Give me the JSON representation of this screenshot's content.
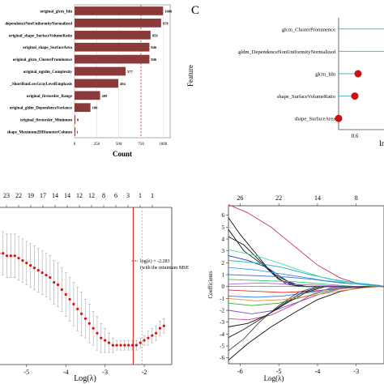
{
  "panel_labels": {
    "c": "C"
  },
  "chart_data": [
    {
      "type": "bar",
      "orientation": "horizontal",
      "categories": [
        "original_glcm_Idn",
        "dependenceNonUniformityNormalized",
        "original_shape_SurfaceVolumeRatio",
        "original_shape_SurfaceArea",
        "original_glcm_ClusterProminence",
        "original_ngtdm_Complexity",
        "_ShortRunLowGrayLevelEmphasis",
        "original_firstorder_Range",
        "original_gldm_DependenceVariance",
        "original_firstorder_Minimum",
        "shape_Maximum2DDiameterColumn"
      ],
      "values": [
        1000,
        978,
        859,
        846,
        846,
        577,
        494,
        289,
        180,
        8,
        1
      ],
      "xlabel": "Count",
      "xticks": [
        0,
        250,
        500,
        750,
        1000
      ],
      "xlim": [
        0,
        1080
      ],
      "reference_line_x": 750,
      "bar_color": "#8b3a3a",
      "grid": true
    },
    {
      "type": "scatter",
      "orientation": "horizontal-lollipop",
      "categories": [
        "glcm_ClusterProminence",
        "gldm_DependenceNonUniformityNormalized",
        "glcm_Idn",
        "shape_SurfaceVolumeRatio",
        "shape_SurfaceArea"
      ],
      "values": [
        null,
        null,
        0.61,
        0.6,
        0.55
      ],
      "ylabel": "Feature",
      "xlabel": "Imp",
      "xticks": [
        0.6
      ],
      "xlim": [
        0.45,
        0.7
      ],
      "point_color": "#cc1111",
      "line_color": "#4ab3d6"
    },
    {
      "type": "line",
      "xlabel": "Log(λ)",
      "xticks": [
        -5,
        -4,
        -3,
        -2
      ],
      "xlim": [
        -5.8,
        -1.3
      ],
      "top_ticks": [
        "23",
        "22",
        "19",
        "17",
        "14",
        "14",
        "12",
        "12",
        "8",
        "6",
        "3",
        "1",
        "1"
      ],
      "series": [
        {
          "x": [
            -5.8,
            -5.7,
            -5.6,
            -5.5,
            -5.4,
            -5.3,
            -5.2,
            -5.1,
            -5.0,
            -4.9,
            -4.8,
            -4.7,
            -4.6,
            -4.5,
            -4.4,
            -4.3,
            -4.2,
            -4.1,
            -4.0,
            -3.9,
            -3.8,
            -3.7,
            -3.6,
            -3.5,
            -3.4,
            -3.3,
            -3.2,
            -3.1,
            -3.0,
            -2.9,
            -2.8,
            -2.7,
            -2.6,
            -2.5,
            -2.4,
            -2.3,
            -2.2,
            -2.1,
            -2.0,
            -1.9,
            -1.8,
            -1.7,
            -1.6,
            -1.5
          ],
          "y": [
            0.81,
            0.81,
            0.81,
            0.8,
            0.8,
            0.8,
            0.79,
            0.78,
            0.77,
            0.76,
            0.75,
            0.74,
            0.73,
            0.72,
            0.71,
            0.69,
            0.68,
            0.66,
            0.64,
            0.62,
            0.6,
            0.58,
            0.56,
            0.54,
            0.52,
            0.5,
            0.48,
            0.46,
            0.45,
            0.44,
            0.43,
            0.43,
            0.43,
            0.43,
            0.43,
            0.43,
            0.43,
            0.44,
            0.45,
            0.46,
            0.47,
            0.48,
            0.5,
            0.51
          ],
          "err": [
            0.09,
            0.09,
            0.09,
            0.09,
            0.09,
            0.09,
            0.09,
            0.09,
            0.09,
            0.09,
            0.09,
            0.09,
            0.09,
            0.09,
            0.09,
            0.09,
            0.09,
            0.09,
            0.09,
            0.09,
            0.09,
            0.09,
            0.09,
            0.08,
            0.08,
            0.07,
            0.07,
            0.06,
            0.05,
            0.04,
            0.03,
            0.02,
            0.02,
            0.02,
            0.02,
            0.02,
            0.02,
            0.02,
            0.02,
            0.03,
            0.03,
            0.03,
            0.03,
            0.03
          ]
        }
      ],
      "vlines": [
        -2.283,
        -2.05
      ],
      "ylim": [
        0.35,
        1.0
      ],
      "legend": [
        "log(λ) = -2.283",
        "(with the minimum MSE"
      ],
      "color": "#dd1111"
    },
    {
      "type": "line",
      "xlabel": "Log(λ)",
      "ylabel": "Coefficients",
      "xticks": [
        -6,
        -5,
        -4,
        -3
      ],
      "xlim": [
        -6.3,
        -2.2
      ],
      "yticks": [
        -6,
        -5,
        -4,
        -3,
        -2,
        -1,
        0,
        1,
        2,
        3,
        4,
        5,
        6
      ],
      "ylim": [
        -6.5,
        6.8
      ],
      "top_ticks": [
        "26",
        "22",
        "14",
        "8"
      ],
      "top_tick_x": [
        -6,
        -5,
        -4,
        -3
      ],
      "series": [
        {
          "x": [
            -6.3,
            -5.8,
            -5.2,
            -4.6,
            -4.0,
            -3.4,
            -2.9,
            -2.2
          ],
          "y": [
            6.9,
            6.2,
            5.0,
            3.4,
            1.8,
            0.7,
            0.2,
            0.0
          ],
          "color": "#cc3366"
        },
        {
          "x": [
            -6.3,
            -5.9,
            -5.5,
            -5.1,
            -4.7,
            -4.3,
            -3.9
          ],
          "y": [
            4.2,
            3.5,
            2.2,
            1.0,
            0.3,
            0.0,
            0.0
          ],
          "color": "#111111"
        },
        {
          "x": [
            -6.3,
            -6.0,
            -5.6,
            -5.2,
            -4.8,
            -4.4
          ],
          "y": [
            5.8,
            4.4,
            2.8,
            1.2,
            0.2,
            0.0
          ],
          "color": "#111111"
        },
        {
          "x": [
            -6.3,
            -5.9,
            -5.4,
            -5.0,
            -4.6,
            -4.2
          ],
          "y": [
            4.8,
            3.0,
            1.8,
            0.6,
            0.1,
            0.0
          ],
          "color": "#111111"
        },
        {
          "x": [
            -6.3,
            -5.8,
            -5.3,
            -4.8,
            -4.4
          ],
          "y": [
            2.6,
            2.2,
            1.6,
            0.5,
            0.0
          ],
          "color": "#2244aa"
        },
        {
          "x": [
            -6.3,
            -5.6,
            -4.9,
            -4.2,
            -3.6,
            -3.0,
            -2.4
          ],
          "y": [
            2.2,
            2.0,
            1.6,
            1.0,
            0.6,
            0.3,
            0.1
          ],
          "color": "#22aacc"
        },
        {
          "x": [
            -6.3,
            -5.6,
            -5.0,
            -4.4,
            -3.8,
            -3.2,
            -2.5
          ],
          "y": [
            1.6,
            1.4,
            1.1,
            0.8,
            0.5,
            0.3,
            0.1
          ],
          "color": "#3399ff"
        },
        {
          "x": [
            -6.3,
            -5.5,
            -4.8,
            -4.1,
            -3.4,
            -2.6
          ],
          "y": [
            1.0,
            0.9,
            0.8,
            0.6,
            0.3,
            0.1
          ],
          "color": "#5577cc"
        },
        {
          "x": [
            -6.3,
            -5.4,
            -4.6,
            -3.8,
            -3.0
          ],
          "y": [
            0.6,
            0.5,
            0.4,
            0.2,
            0.0
          ],
          "color": "#22cc66"
        },
        {
          "x": [
            -6.3,
            -5.5,
            -4.7,
            -3.9,
            -3.1
          ],
          "y": [
            0.2,
            0.3,
            0.2,
            0.1,
            0.0
          ],
          "color": "#aa66dd"
        },
        {
          "x": [
            -6.3,
            -5.6,
            -4.9,
            -4.2,
            -3.5,
            -2.8
          ],
          "y": [
            -0.3,
            -0.4,
            -0.5,
            -0.4,
            -0.2,
            -0.05
          ],
          "color": "#dd3333"
        },
        {
          "x": [
            -6.3,
            -5.6,
            -4.9,
            -4.2,
            -3.5
          ],
          "y": [
            -0.8,
            -0.9,
            -0.8,
            -0.5,
            -0.1
          ],
          "color": "#2277ee"
        },
        {
          "x": [
            -6.3,
            -5.7,
            -5.0,
            -4.4,
            -3.8,
            -3.2
          ],
          "y": [
            -1.4,
            -1.6,
            -1.4,
            -0.9,
            -0.4,
            -0.05
          ],
          "color": "#33aa33"
        },
        {
          "x": [
            -6.3,
            -5.7,
            -5.1,
            -4.5,
            -3.9,
            -3.3
          ],
          "y": [
            -2.0,
            -2.3,
            -2.0,
            -1.3,
            -0.6,
            -0.1
          ],
          "color": "#7755cc"
        },
        {
          "x": [
            -6.3,
            -5.8,
            -5.2,
            -4.6,
            -4.1,
            -3.6
          ],
          "y": [
            -2.7,
            -2.8,
            -2.4,
            -1.5,
            -0.6,
            -0.05
          ],
          "color": "#cc4488"
        },
        {
          "x": [
            -6.3,
            -5.8,
            -5.3,
            -4.8,
            -4.3,
            -3.8
          ],
          "y": [
            -3.4,
            -3.1,
            -2.4,
            -1.4,
            -0.5,
            0.0
          ],
          "color": "#111111"
        },
        {
          "x": [
            -6.3,
            -5.9,
            -5.4,
            -4.9,
            -4.4,
            -3.9
          ],
          "y": [
            -4.3,
            -3.6,
            -2.6,
            -1.5,
            -0.5,
            0.0
          ],
          "color": "#222222"
        },
        {
          "x": [
            -6.3,
            -5.9,
            -5.5,
            -5.0,
            -4.5,
            -4.0
          ],
          "y": [
            -5.4,
            -4.4,
            -3.0,
            -1.6,
            -0.5,
            0.0
          ],
          "color": "#444444"
        },
        {
          "x": [
            -6.3,
            -5.8,
            -5.2,
            -4.6,
            -4.0,
            -3.4,
            -2.8
          ],
          "y": [
            -6.2,
            -4.8,
            -3.4,
            -2.2,
            -1.1,
            -0.4,
            -0.05
          ],
          "color": "#111111"
        },
        {
          "x": [
            -6.3,
            -5.6,
            -5.0,
            -4.4,
            -3.8,
            -3.2,
            -2.6
          ],
          "y": [
            3.1,
            2.6,
            2.0,
            1.3,
            0.7,
            0.3,
            0.05
          ],
          "color": "#44ddaa"
        },
        {
          "x": [
            -6.3,
            -5.6,
            -4.9,
            -4.2,
            -3.5,
            -2.8
          ],
          "y": [
            -1.0,
            -1.2,
            -1.1,
            -0.8,
            -0.4,
            -0.1
          ],
          "color": "#ee8833"
        }
      ]
    }
  ]
}
